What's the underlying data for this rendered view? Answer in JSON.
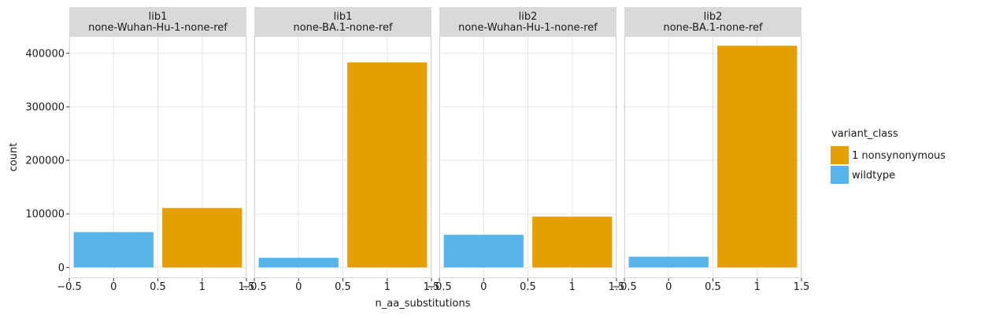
{
  "chart_data": {
    "type": "bar",
    "xlabel": "n_aa_substitutions",
    "ylabel": "count",
    "xlim": [
      -0.5,
      1.5
    ],
    "ylim": [
      -20000,
      432000
    ],
    "x_ticks": [
      -0.5,
      0,
      0.5,
      1,
      1.5
    ],
    "x_tick_labels": [
      "−0.5",
      "0",
      "0.5",
      "1",
      "1.5"
    ],
    "y_ticks": [
      0,
      100000,
      200000,
      300000,
      400000
    ],
    "y_tick_labels": [
      "0",
      "100000",
      "200000",
      "300000",
      "400000"
    ],
    "grid": true,
    "bar_width": 0.9,
    "legend": {
      "title": "variant_class",
      "position": "right",
      "entries": [
        {
          "label": "1 nonsynonymous",
          "color": "#E69F00"
        },
        {
          "label": "wildtype",
          "color": "#56B4E9"
        }
      ]
    },
    "facets": [
      {
        "strip": [
          "lib1",
          "none-Wuhan-Hu-1-none-ref"
        ],
        "bars": [
          {
            "x": 0,
            "value": 66000,
            "class": "wildtype"
          },
          {
            "x": 1,
            "value": 111000,
            "class": "1 nonsynonymous"
          }
        ]
      },
      {
        "strip": [
          "lib1",
          "none-BA.1-none-ref"
        ],
        "bars": [
          {
            "x": 0,
            "value": 18000,
            "class": "wildtype"
          },
          {
            "x": 1,
            "value": 383000,
            "class": "1 nonsynonymous"
          }
        ]
      },
      {
        "strip": [
          "lib2",
          "none-Wuhan-Hu-1-none-ref"
        ],
        "bars": [
          {
            "x": 0,
            "value": 61000,
            "class": "wildtype"
          },
          {
            "x": 1,
            "value": 95000,
            "class": "1 nonsynonymous"
          }
        ]
      },
      {
        "strip": [
          "lib2",
          "none-BA.1-none-ref"
        ],
        "bars": [
          {
            "x": 0,
            "value": 20000,
            "class": "wildtype"
          },
          {
            "x": 1,
            "value": 414000,
            "class": "1 nonsynonymous"
          }
        ]
      }
    ]
  }
}
